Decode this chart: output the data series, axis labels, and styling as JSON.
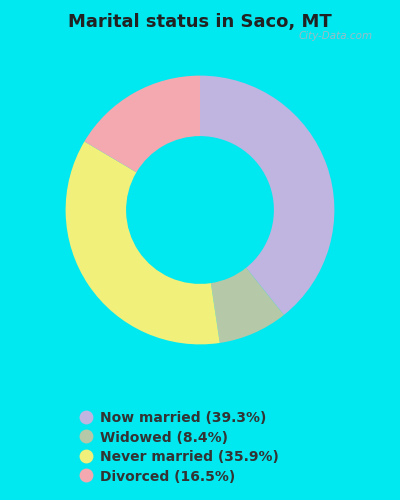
{
  "title": "Marital status in Saco, MT",
  "categories": [
    "Now married (39.3%)",
    "Widowed (8.4%)",
    "Never married (35.9%)",
    "Divorced (16.5%)"
  ],
  "values": [
    39.3,
    8.4,
    35.9,
    16.5
  ],
  "colors": [
    "#c0b4e0",
    "#b5c9a8",
    "#f0f07a",
    "#f4a8b0"
  ],
  "bg_outer": "#00e8f0",
  "bg_chart": "#d8f0e0",
  "title_fontsize": 13,
  "legend_fontsize": 10,
  "donut_width": 0.45,
  "watermark": "City-Data.com"
}
